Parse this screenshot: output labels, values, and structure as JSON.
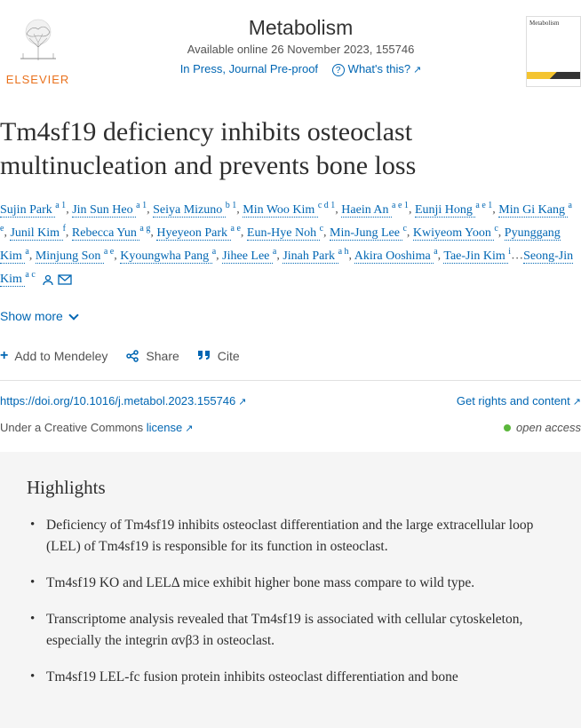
{
  "publisher": "ELSEVIER",
  "journal": {
    "name": "Metabolism",
    "pubLine": "Available online 26 November 2023, 155746",
    "pressStatus": "In Press, Journal Pre-proof",
    "whatsThis": "What's this?"
  },
  "title": "Tm4sf19 deficiency inhibits osteoclast multinucleation and prevents bone loss",
  "authors": [
    {
      "name": "Sujin Park",
      "aff": "a 1"
    },
    {
      "name": "Jin Sun Heo",
      "aff": "a 1"
    },
    {
      "name": "Seiya Mizuno",
      "aff": "b 1"
    },
    {
      "name": "Min Woo Kim",
      "aff": "c d 1"
    },
    {
      "name": "Haein An",
      "aff": "a e 1"
    },
    {
      "name": "Eunji Hong",
      "aff": "a e 1"
    },
    {
      "name": "Min Gi Kang",
      "aff": "a e"
    },
    {
      "name": "Junil Kim",
      "aff": "f"
    },
    {
      "name": "Rebecca Yun",
      "aff": "a g"
    },
    {
      "name": "Hyeyeon Park",
      "aff": "a e"
    },
    {
      "name": "Eun-Hye Noh",
      "aff": "c"
    },
    {
      "name": "Min-Jung Lee",
      "aff": "c"
    },
    {
      "name": "Kwiyeom Yoon",
      "aff": "c"
    },
    {
      "name": "Pyunggang Kim",
      "aff": "a"
    },
    {
      "name": "Minjung Son",
      "aff": "a e"
    },
    {
      "name": "Kyoungwha Pang",
      "aff": "a"
    },
    {
      "name": "Jihee Lee",
      "aff": "a"
    },
    {
      "name": "Jinah Park",
      "aff": "a h"
    },
    {
      "name": "Akira Ooshima",
      "aff": "a"
    },
    {
      "name": "Tae-Jin Kim",
      "aff": "i"
    }
  ],
  "lastAuthor": {
    "name": "Seong-Jin Kim",
    "aff": "a c"
  },
  "ellipsis": "…",
  "showMore": "Show more",
  "actions": {
    "mendeley": "Add to Mendeley",
    "share": "Share",
    "cite": "Cite"
  },
  "doi": "https://doi.org/10.1016/j.metabol.2023.155746",
  "rights": "Get rights and content",
  "licenseText": "Under a Creative Commons ",
  "licenseLink": "license",
  "openAccess": "open access",
  "highlights": {
    "heading": "Highlights",
    "items": [
      "Deficiency of Tm4sf19 inhibits osteoclast differentiation and the large extracellular loop (LEL) of Tm4sf19 is responsible for its function in osteoclast.",
      "Tm4sf19 KO and LELΔ mice exhibit higher bone mass compare to wild type.",
      "Transcriptome analysis revealed that Tm4sf19 is associated with cellular cytoskeleton, especially the integrin αvβ3 in osteoclast.",
      "Tm4sf19 LEL-fc fusion protein inhibits osteoclast differentiation and bone"
    ]
  }
}
